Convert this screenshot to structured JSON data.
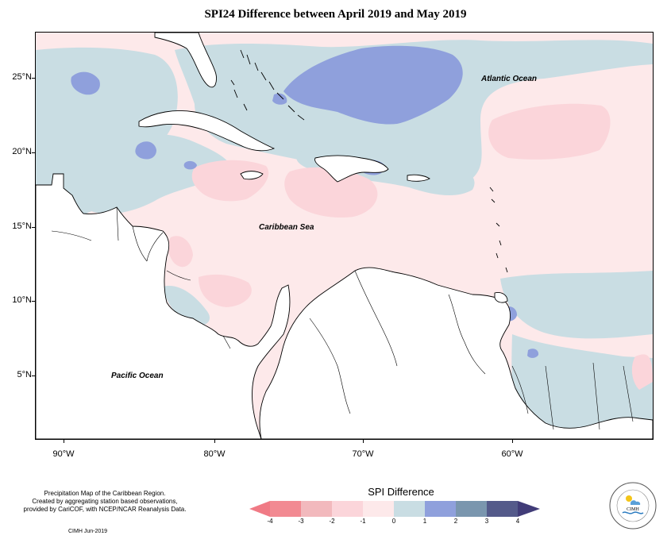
{
  "title": "SPI24 Difference between April 2019 and May 2019",
  "map": {
    "ocean_labels": {
      "atlantic": "Atlantic Ocean",
      "caribbean": "Caribbean Sea",
      "pacific": "Pacific Ocean"
    },
    "latitude_labels": [
      "25°N",
      "20°N",
      "15°N",
      "10°N",
      "5°N"
    ],
    "longitude_labels": [
      "90°W",
      "80°W",
      "70°W",
      "60°W"
    ],
    "colors": {
      "land": "#ffffff",
      "coastline": "#000000",
      "neutral": "#fde9ea",
      "light_wet": "#c9dde3",
      "wet": "#8fa0dc",
      "light_dry": "#fbd5da"
    }
  },
  "footnote": {
    "line1": "Precipitation Map of the Caribbean Region.",
    "line2": "Created by aggregating station based observations,",
    "line3": "provided by CariCOF, with NCEP/NCAR Reanalysis Data."
  },
  "credit": "CIMH Jun-2019",
  "legend": {
    "title": "SPI Difference",
    "ticks": [
      "-4",
      "-3",
      "-2",
      "-1",
      "0",
      "1",
      "2",
      "3",
      "4"
    ],
    "colors": [
      "#f28a92",
      "#f2b9bd",
      "#fbd5da",
      "#fde9ea",
      "#c9dde3",
      "#8fa0dc",
      "#7a96ae",
      "#545a8a"
    ],
    "arrow_left_color": "#f07a85",
    "arrow_right_color": "#413c78"
  },
  "logo": {
    "text": "CIMH",
    "ring_text": "Caribbean Institute for Meteorology and Hydrology"
  }
}
